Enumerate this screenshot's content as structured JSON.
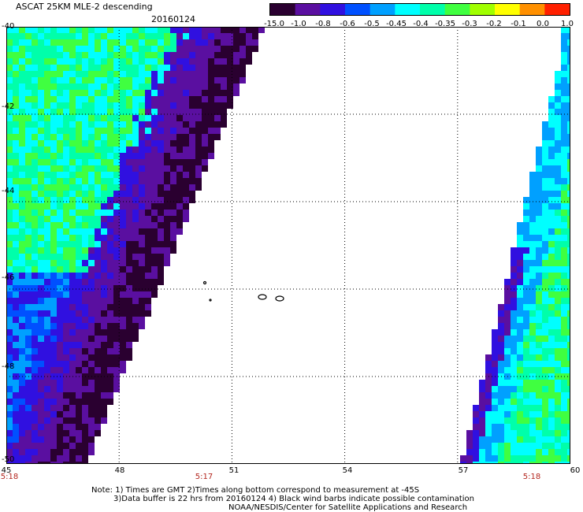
{
  "header": {
    "title": "ASCAT 25KM MLE-2 descending",
    "date": "20160124"
  },
  "colorbar": {
    "labels": [
      "-15.0",
      "-1.0",
      "-0.8",
      "-0.6",
      "-0.5",
      "-0.45",
      "-0.4",
      "-0.35",
      "-0.3",
      "-0.2",
      "-0.1",
      "0.0",
      "1.0"
    ],
    "colors": [
      "#2a0030",
      "#5a0fa0",
      "#3010e0",
      "#0050ff",
      "#00a0ff",
      "#00ffff",
      "#00ffaa",
      "#40ff40",
      "#a0ff00",
      "#ffff00",
      "#ff9000",
      "#ff2000"
    ]
  },
  "axes": {
    "y_ticks": [
      "-40",
      "-42",
      "-44",
      "-46",
      "-48",
      "-50"
    ],
    "x_ticks": [
      "45",
      "48",
      "51",
      "54",
      "57",
      "60"
    ],
    "lat_range": [
      -50,
      -40
    ],
    "lon_range": [
      45,
      60
    ]
  },
  "times": [
    "5:18",
    "5:17",
    "5:18"
  ],
  "notes": [
    "Note: 1) Times are GMT 2)Times along bottom correspond to measurement at -45S",
    "3)Data buffer is 22 hrs from 20160124 4) Black wind barbs indicate possible contamination",
    "NOAA/NESDIS/Center for Satellite Applications and Research"
  ]
}
